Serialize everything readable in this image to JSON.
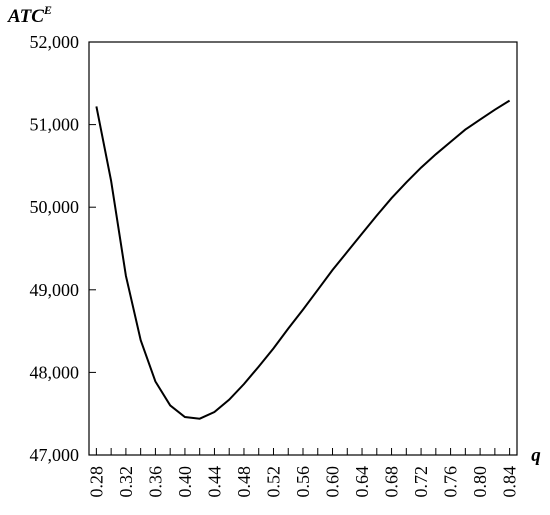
{
  "chart_data": {
    "type": "line",
    "ylabel": "ATC",
    "ylabel_superscript": "E",
    "xlabel": "q",
    "xlim": [
      0.27,
      0.85
    ],
    "ylim": [
      47000,
      52000
    ],
    "grid": false,
    "legend": "none",
    "line_color": "#000000",
    "x_ticks": [
      0.28,
      0.3,
      0.32,
      0.34,
      0.36,
      0.38,
      0.4,
      0.42,
      0.44,
      0.46,
      0.48,
      0.5,
      0.52,
      0.54,
      0.56,
      0.58,
      0.6,
      0.62,
      0.64,
      0.66,
      0.68,
      0.7,
      0.72,
      0.74,
      0.76,
      0.78,
      0.8,
      0.82,
      0.84
    ],
    "x_tick_labels": [
      "0.28",
      "0.32",
      "0.36",
      "0.40",
      "0.44",
      "0.48",
      "0.52",
      "0.56",
      "0.60",
      "0.64",
      "0.68",
      "0.72",
      "0.76",
      "0.80",
      "0.84"
    ],
    "x_tick_label_values": [
      0.28,
      0.32,
      0.36,
      0.4,
      0.44,
      0.48,
      0.52,
      0.56,
      0.6,
      0.64,
      0.68,
      0.72,
      0.76,
      0.8,
      0.84
    ],
    "y_ticks": [
      47000,
      48000,
      49000,
      50000,
      51000,
      52000
    ],
    "y_tick_labels": [
      "47,000",
      "48,000",
      "49,000",
      "50,000",
      "51,000",
      "52,000"
    ],
    "series": [
      {
        "x": [
          0.28,
          0.3,
          0.32,
          0.34,
          0.36,
          0.38,
          0.4,
          0.42,
          0.44,
          0.46,
          0.48,
          0.5,
          0.52,
          0.54,
          0.56,
          0.58,
          0.6,
          0.62,
          0.64,
          0.66,
          0.68,
          0.7,
          0.72,
          0.74,
          0.76,
          0.78,
          0.8,
          0.82,
          0.84
        ],
        "values": [
          51220,
          50320,
          49170,
          48390,
          47890,
          47600,
          47460,
          47440,
          47520,
          47670,
          47860,
          48070,
          48290,
          48530,
          48760,
          49000,
          49240,
          49460,
          49680,
          49900,
          50110,
          50300,
          50480,
          50640,
          50790,
          50940,
          51060,
          51180,
          51290
        ]
      }
    ]
  }
}
